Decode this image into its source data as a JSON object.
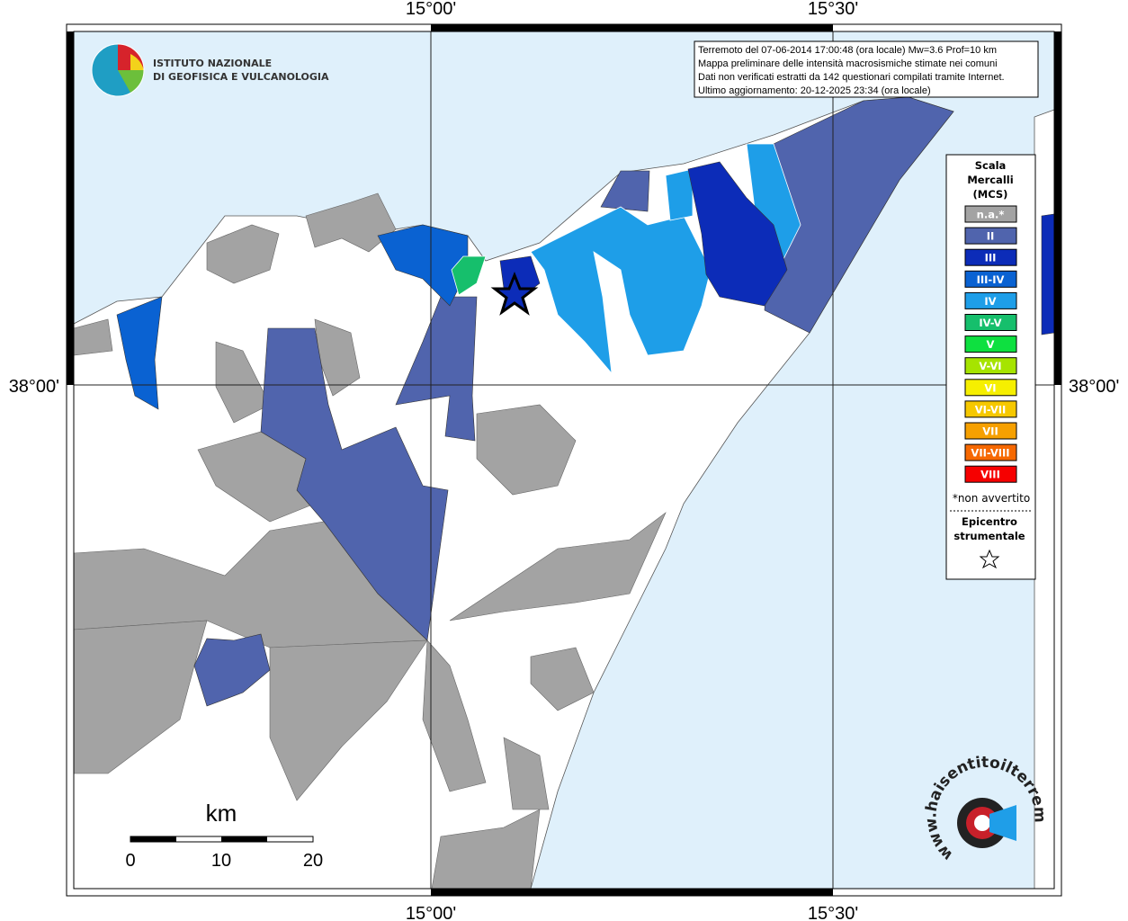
{
  "axes": {
    "top": [
      "15°00'",
      "15°30'"
    ],
    "bottom": [
      "15°00'",
      "15°30'"
    ],
    "left": [
      "38°00'"
    ],
    "right": [
      "38°00'"
    ]
  },
  "logo": {
    "line1": "ISTITUTO NAZIONALE",
    "line2": "DI GEOFISICA E VULCANOLOGIA"
  },
  "info": {
    "lines": [
      "Terremoto del 07-06-2014 17:00:48 (ora locale) Mw=3.6 Prof=10 km",
      "Mappa preliminare delle intensità macrosismiche stimate nei comuni",
      "Dati non verificati estratti da 142 questionari compilati tramite Internet.",
      "Ultimo aggiornamento: 20-12-2025 23:34 (ora locale)"
    ]
  },
  "legend": {
    "title": [
      "Scala",
      "Mercalli",
      "(MCS)"
    ],
    "entries": [
      {
        "label": "n.a.*",
        "color": "#a3a3a3"
      },
      {
        "label": "II",
        "color": "#5064ad"
      },
      {
        "label": "III",
        "color": "#0c2cb8"
      },
      {
        "label": "III-IV",
        "color": "#0a62d2"
      },
      {
        "label": "IV",
        "color": "#1e9ee8"
      },
      {
        "label": "IV-V",
        "color": "#16bf6c"
      },
      {
        "label": "V",
        "color": "#0ee040"
      },
      {
        "label": "V-VI",
        "color": "#a6e400"
      },
      {
        "label": "VI",
        "color": "#f6ef00"
      },
      {
        "label": "VI-VII",
        "color": "#f6c800"
      },
      {
        "label": "VII",
        "color": "#f6a000"
      },
      {
        "label": "VII-VIII",
        "color": "#f66800"
      },
      {
        "label": "VIII",
        "color": "#f60000"
      }
    ],
    "note": "*non avvertito",
    "epicenter": [
      "Epicentro",
      "strumentale"
    ]
  },
  "scale_bar": {
    "unit": "km",
    "labels": [
      "0",
      "10",
      "20"
    ]
  },
  "badge": {
    "text": "www.haisentitoilterremoto.it"
  }
}
